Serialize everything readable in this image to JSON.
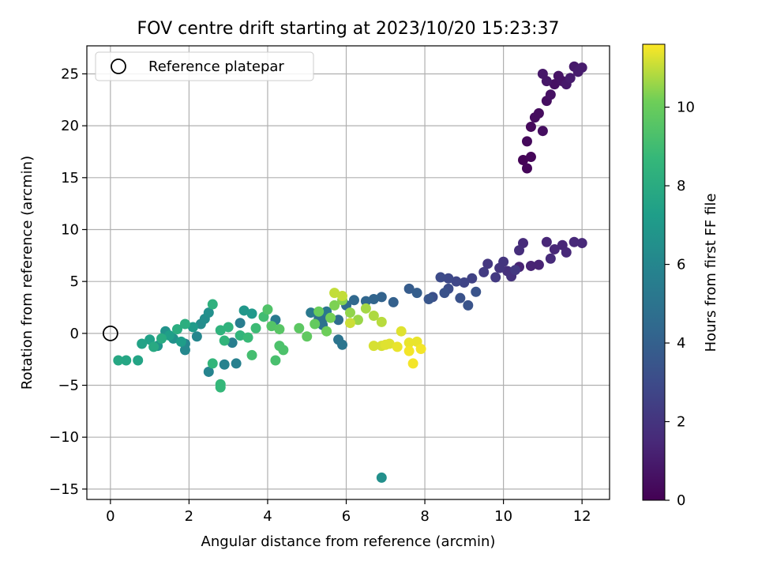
{
  "chart_data": {
    "type": "scatter",
    "title": "FOV centre drift starting at 2023/10/20 15:23:37",
    "xlabel": "Angular distance from reference (arcmin)",
    "ylabel": "Rotation from reference (arcmin)",
    "xlim": [
      -0.6,
      12.7
    ],
    "ylim": [
      -16.0,
      27.7
    ],
    "xticks": [
      0,
      2,
      4,
      6,
      8,
      10,
      12
    ],
    "yticks": [
      -15,
      -10,
      -5,
      0,
      5,
      10,
      15,
      20,
      25
    ],
    "grid": true,
    "legend": {
      "position": "top-left",
      "entries": [
        {
          "label": "Reference platepar",
          "marker": "open-circle"
        }
      ]
    },
    "reference_point": {
      "x": 0,
      "y": 0
    },
    "colorbar": {
      "label": "Hours from first FF file",
      "colormap": "viridis",
      "range": [
        0,
        11.6
      ],
      "ticks": [
        0,
        2,
        4,
        6,
        8,
        10
      ]
    },
    "series": [
      {
        "color_value_key": "hours",
        "points": [
          {
            "x": 10.5,
            "y": 16.7,
            "hours": 0.1
          },
          {
            "x": 10.6,
            "y": 15.9,
            "hours": 0.2
          },
          {
            "x": 10.7,
            "y": 17.0,
            "hours": 0.2
          },
          {
            "x": 10.6,
            "y": 18.5,
            "hours": 0.3
          },
          {
            "x": 10.7,
            "y": 19.9,
            "hours": 0.3
          },
          {
            "x": 10.8,
            "y": 20.8,
            "hours": 0.4
          },
          {
            "x": 10.9,
            "y": 21.2,
            "hours": 0.4
          },
          {
            "x": 11.0,
            "y": 19.5,
            "hours": 0.5
          },
          {
            "x": 11.1,
            "y": 22.4,
            "hours": 0.5
          },
          {
            "x": 11.2,
            "y": 23.0,
            "hours": 0.6
          },
          {
            "x": 11.3,
            "y": 24.0,
            "hours": 0.6
          },
          {
            "x": 11.4,
            "y": 24.8,
            "hours": 0.7
          },
          {
            "x": 11.5,
            "y": 24.3,
            "hours": 0.7
          },
          {
            "x": 11.0,
            "y": 25.0,
            "hours": 0.8
          },
          {
            "x": 11.1,
            "y": 24.3,
            "hours": 0.8
          },
          {
            "x": 11.6,
            "y": 24.0,
            "hours": 0.9
          },
          {
            "x": 11.8,
            "y": 25.7,
            "hours": 0.9
          },
          {
            "x": 12.0,
            "y": 25.6,
            "hours": 1.0
          },
          {
            "x": 11.9,
            "y": 25.2,
            "hours": 1.0
          },
          {
            "x": 11.7,
            "y": 24.6,
            "hours": 1.0
          },
          {
            "x": 10.4,
            "y": 6.4,
            "hours": 1.3
          },
          {
            "x": 10.7,
            "y": 6.5,
            "hours": 1.3
          },
          {
            "x": 10.9,
            "y": 6.6,
            "hours": 1.3
          },
          {
            "x": 11.1,
            "y": 8.8,
            "hours": 1.4
          },
          {
            "x": 11.3,
            "y": 8.1,
            "hours": 1.4
          },
          {
            "x": 11.5,
            "y": 8.5,
            "hours": 1.4
          },
          {
            "x": 11.8,
            "y": 8.8,
            "hours": 1.5
          },
          {
            "x": 12.0,
            "y": 8.7,
            "hours": 1.5
          },
          {
            "x": 11.6,
            "y": 7.8,
            "hours": 1.5
          },
          {
            "x": 11.2,
            "y": 7.2,
            "hours": 1.6
          },
          {
            "x": 10.5,
            "y": 8.7,
            "hours": 1.6
          },
          {
            "x": 10.4,
            "y": 8.0,
            "hours": 1.7
          },
          {
            "x": 10.1,
            "y": 6.0,
            "hours": 1.8
          },
          {
            "x": 10.2,
            "y": 5.5,
            "hours": 1.9
          },
          {
            "x": 10.0,
            "y": 6.9,
            "hours": 2.0
          },
          {
            "x": 9.9,
            "y": 6.3,
            "hours": 2.0
          },
          {
            "x": 9.6,
            "y": 6.7,
            "hours": 2.1
          },
          {
            "x": 9.8,
            "y": 5.4,
            "hours": 2.2
          },
          {
            "x": 10.3,
            "y": 6.1,
            "hours": 2.2
          },
          {
            "x": 9.5,
            "y": 5.9,
            "hours": 2.3
          },
          {
            "x": 9.2,
            "y": 5.3,
            "hours": 2.6
          },
          {
            "x": 9.0,
            "y": 4.9,
            "hours": 2.7
          },
          {
            "x": 8.8,
            "y": 5.0,
            "hours": 2.8
          },
          {
            "x": 8.6,
            "y": 5.3,
            "hours": 2.9
          },
          {
            "x": 8.4,
            "y": 5.4,
            "hours": 3.0
          },
          {
            "x": 8.6,
            "y": 4.3,
            "hours": 3.1
          },
          {
            "x": 8.2,
            "y": 3.5,
            "hours": 3.2
          },
          {
            "x": 8.5,
            "y": 3.9,
            "hours": 3.3
          },
          {
            "x": 8.9,
            "y": 3.4,
            "hours": 3.3
          },
          {
            "x": 9.1,
            "y": 2.7,
            "hours": 3.4
          },
          {
            "x": 9.3,
            "y": 4.0,
            "hours": 3.4
          },
          {
            "x": 8.1,
            "y": 3.3,
            "hours": 3.5
          },
          {
            "x": 7.6,
            "y": 4.3,
            "hours": 3.8
          },
          {
            "x": 7.8,
            "y": 3.9,
            "hours": 3.9
          },
          {
            "x": 7.2,
            "y": 3.0,
            "hours": 4.0
          },
          {
            "x": 6.9,
            "y": 3.5,
            "hours": 4.1
          },
          {
            "x": 6.7,
            "y": 3.3,
            "hours": 4.2
          },
          {
            "x": 6.5,
            "y": 3.1,
            "hours": 4.3
          },
          {
            "x": 6.2,
            "y": 3.2,
            "hours": 4.4
          },
          {
            "x": 6.0,
            "y": 2.7,
            "hours": 4.5
          },
          {
            "x": 5.8,
            "y": 1.3,
            "hours": 4.6
          },
          {
            "x": 5.5,
            "y": 1.6,
            "hours": 4.7
          },
          {
            "x": 5.3,
            "y": 1.4,
            "hours": 4.8
          },
          {
            "x": 5.4,
            "y": 0.8,
            "hours": 4.9
          },
          {
            "x": 5.8,
            "y": -0.6,
            "hours": 5.0
          },
          {
            "x": 5.9,
            "y": -1.1,
            "hours": 5.1
          },
          {
            "x": 5.5,
            "y": 2.1,
            "hours": 5.2
          },
          {
            "x": 5.1,
            "y": 2.0,
            "hours": 5.3
          },
          {
            "x": 4.2,
            "y": 1.3,
            "hours": 5.4
          },
          {
            "x": 3.3,
            "y": 1.0,
            "hours": 5.5
          },
          {
            "x": 3.1,
            "y": -0.9,
            "hours": 5.6
          },
          {
            "x": 3.2,
            "y": -2.9,
            "hours": 5.7
          },
          {
            "x": 2.9,
            "y": -3.0,
            "hours": 5.8
          },
          {
            "x": 2.5,
            "y": -3.7,
            "hours": 5.9
          },
          {
            "x": 2.2,
            "y": -0.3,
            "hours": 6.0
          },
          {
            "x": 1.9,
            "y": -1.0,
            "hours": 6.0
          },
          {
            "x": 1.9,
            "y": -1.6,
            "hours": 6.1
          },
          {
            "x": 6.9,
            "y": -13.9,
            "hours": 6.5
          },
          {
            "x": 2.3,
            "y": 0.9,
            "hours": 6.3
          },
          {
            "x": 2.4,
            "y": 1.4,
            "hours": 6.4
          },
          {
            "x": 2.5,
            "y": 2.0,
            "hours": 6.5
          },
          {
            "x": 1.6,
            "y": -0.5,
            "hours": 6.6
          },
          {
            "x": 1.4,
            "y": 0.2,
            "hours": 6.7
          },
          {
            "x": 1.2,
            "y": -1.2,
            "hours": 6.8
          },
          {
            "x": 3.4,
            "y": 2.2,
            "hours": 6.9
          },
          {
            "x": 3.6,
            "y": 1.9,
            "hours": 7.0
          },
          {
            "x": 2.1,
            "y": 0.6,
            "hours": 7.1
          },
          {
            "x": 1.8,
            "y": -0.8,
            "hours": 7.2
          },
          {
            "x": 1.5,
            "y": -0.2,
            "hours": 7.3
          },
          {
            "x": 1.0,
            "y": -0.6,
            "hours": 7.4
          },
          {
            "x": 0.8,
            "y": -1.0,
            "hours": 7.5
          },
          {
            "x": 0.7,
            "y": -2.6,
            "hours": 7.6
          },
          {
            "x": 0.4,
            "y": -2.6,
            "hours": 7.7
          },
          {
            "x": 0.2,
            "y": -2.6,
            "hours": 7.8
          },
          {
            "x": 1.1,
            "y": -1.3,
            "hours": 7.9
          },
          {
            "x": 1.3,
            "y": -0.5,
            "hours": 8.0
          },
          {
            "x": 1.7,
            "y": 0.4,
            "hours": 8.1
          },
          {
            "x": 1.9,
            "y": 0.9,
            "hours": 8.2
          },
          {
            "x": 2.6,
            "y": 2.8,
            "hours": 8.3
          },
          {
            "x": 2.8,
            "y": 0.3,
            "hours": 8.4
          },
          {
            "x": 3.0,
            "y": 0.6,
            "hours": 8.4
          },
          {
            "x": 3.3,
            "y": -0.2,
            "hours": 8.5
          },
          {
            "x": 2.9,
            "y": -0.7,
            "hours": 8.5
          },
          {
            "x": 2.6,
            "y": -2.9,
            "hours": 8.6
          },
          {
            "x": 2.8,
            "y": -5.2,
            "hours": 8.7
          },
          {
            "x": 2.8,
            "y": -4.9,
            "hours": 8.7
          },
          {
            "x": 3.5,
            "y": -0.4,
            "hours": 8.8
          },
          {
            "x": 3.7,
            "y": 0.5,
            "hours": 8.9
          },
          {
            "x": 3.9,
            "y": 1.6,
            "hours": 9.0
          },
          {
            "x": 3.6,
            "y": -2.1,
            "hours": 9.1
          },
          {
            "x": 4.2,
            "y": -2.6,
            "hours": 9.2
          },
          {
            "x": 4.3,
            "y": -1.2,
            "hours": 9.3
          },
          {
            "x": 4.4,
            "y": -1.6,
            "hours": 9.3
          },
          {
            "x": 4.0,
            "y": 2.3,
            "hours": 9.4
          },
          {
            "x": 4.1,
            "y": 0.7,
            "hours": 9.5
          },
          {
            "x": 4.3,
            "y": 0.4,
            "hours": 9.6
          },
          {
            "x": 4.8,
            "y": 0.5,
            "hours": 9.7
          },
          {
            "x": 5.0,
            "y": -0.3,
            "hours": 9.8
          },
          {
            "x": 5.2,
            "y": 0.9,
            "hours": 9.9
          },
          {
            "x": 5.3,
            "y": 2.1,
            "hours": 10.0
          },
          {
            "x": 5.5,
            "y": 0.2,
            "hours": 10.1
          },
          {
            "x": 5.6,
            "y": 1.5,
            "hours": 10.2
          },
          {
            "x": 5.7,
            "y": 2.7,
            "hours": 10.3
          },
          {
            "x": 5.9,
            "y": 3.2,
            "hours": 10.4
          },
          {
            "x": 6.1,
            "y": 2.0,
            "hours": 10.5
          },
          {
            "x": 6.3,
            "y": 1.3,
            "hours": 10.6
          },
          {
            "x": 6.5,
            "y": 2.4,
            "hours": 10.7
          },
          {
            "x": 6.7,
            "y": 1.7,
            "hours": 10.8
          },
          {
            "x": 6.9,
            "y": 1.1,
            "hours": 10.9
          },
          {
            "x": 5.7,
            "y": 3.9,
            "hours": 11.0
          },
          {
            "x": 5.9,
            "y": 3.6,
            "hours": 11.0
          },
          {
            "x": 6.1,
            "y": 1.0,
            "hours": 11.1
          },
          {
            "x": 6.7,
            "y": -1.2,
            "hours": 11.2
          },
          {
            "x": 6.9,
            "y": -1.2,
            "hours": 11.2
          },
          {
            "x": 7.1,
            "y": -1.0,
            "hours": 11.3
          },
          {
            "x": 7.4,
            "y": 0.2,
            "hours": 11.3
          },
          {
            "x": 7.6,
            "y": -0.9,
            "hours": 11.4
          },
          {
            "x": 7.8,
            "y": -0.8,
            "hours": 11.4
          },
          {
            "x": 7.9,
            "y": -1.5,
            "hours": 11.5
          },
          {
            "x": 7.7,
            "y": -2.9,
            "hours": 11.5
          },
          {
            "x": 7.6,
            "y": -1.7,
            "hours": 11.5
          },
          {
            "x": 7.3,
            "y": -1.3,
            "hours": 11.4
          },
          {
            "x": 7.0,
            "y": -1.1,
            "hours": 11.3
          }
        ]
      }
    ]
  }
}
